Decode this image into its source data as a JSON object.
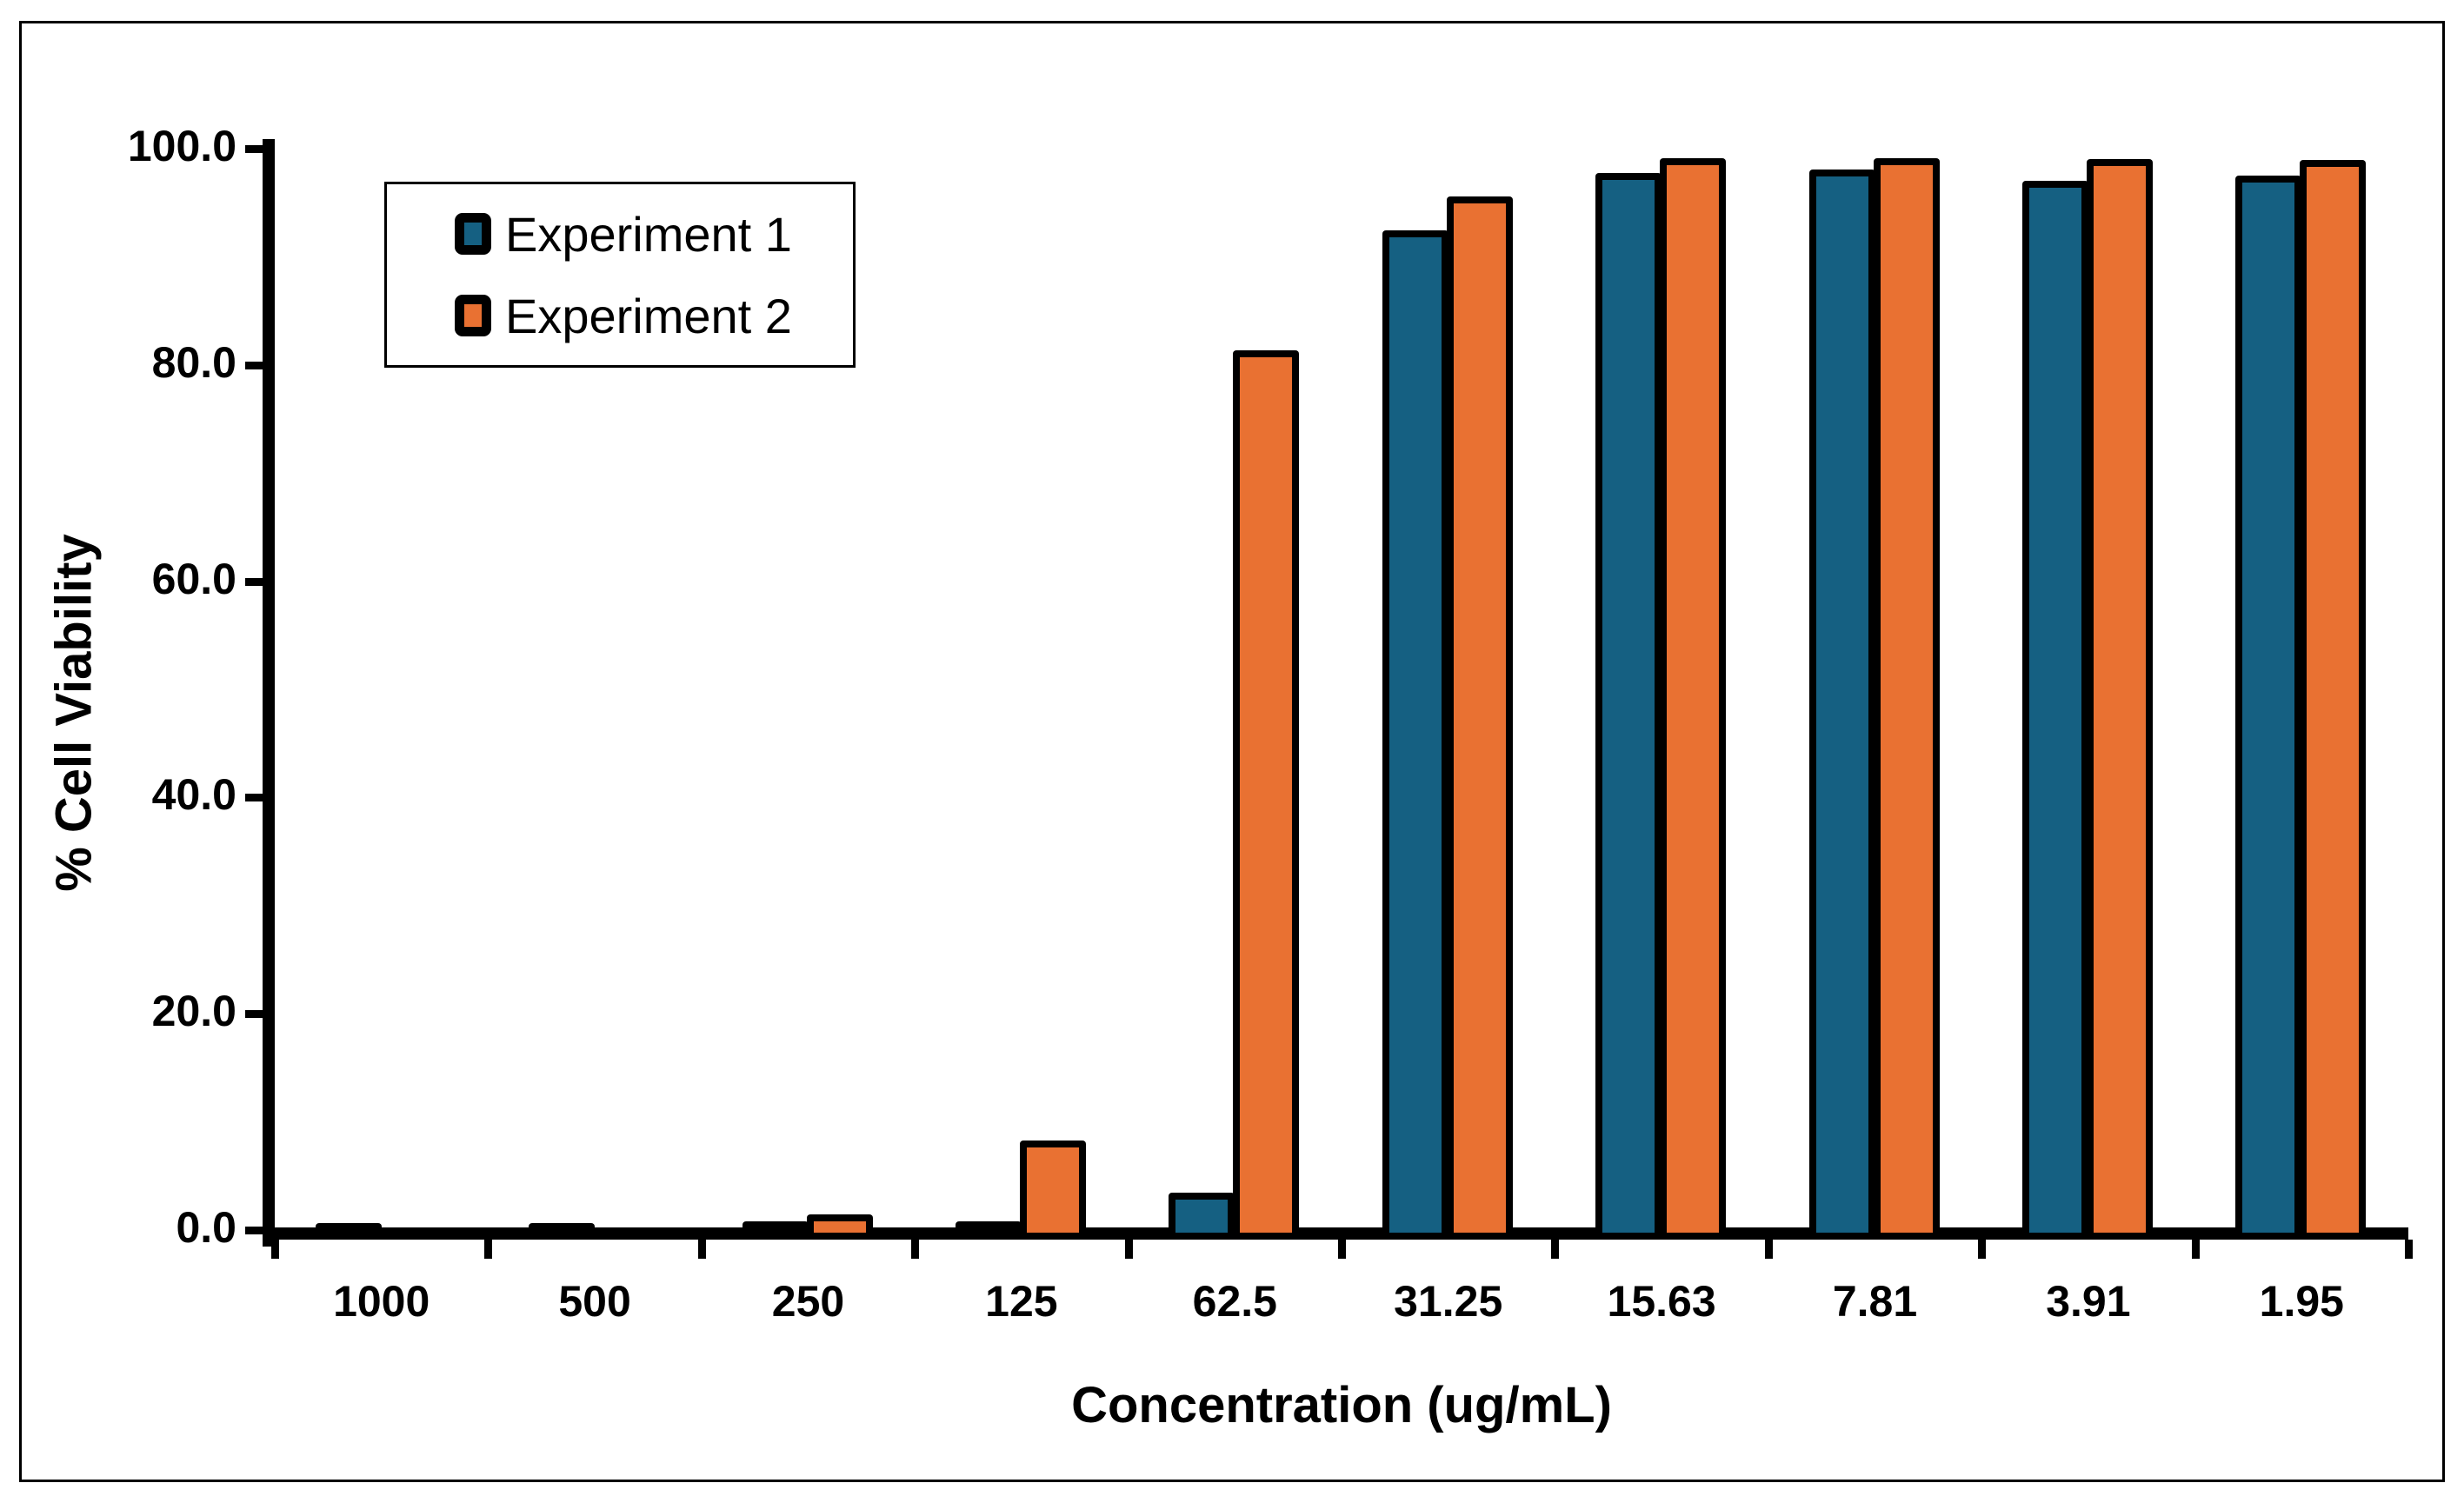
{
  "figure": {
    "y_axis_title": "% Cell Viability",
    "x_axis_title": "Concentration (ug/mL)"
  },
  "legend": {
    "items": [
      {
        "label": "Experiment 1",
        "color": "#156082"
      },
      {
        "label": "Experiment 2",
        "color": "#E97132"
      }
    ]
  },
  "chart_data": {
    "type": "bar",
    "title": "",
    "xlabel": "Concentration (ug/mL)",
    "ylabel": "% Cell Viability",
    "categories": [
      "1000",
      "500",
      "250",
      "125",
      "62.5",
      "31.25",
      "15.63",
      "7.81",
      "3.91",
      "1.95"
    ],
    "series": [
      {
        "name": "Experiment 1",
        "color": "#156082",
        "values": [
          0.4,
          0.4,
          0.6,
          0.6,
          3.2,
          92.2,
          97.5,
          97.8,
          96.8,
          97.3
        ]
      },
      {
        "name": "Experiment 2",
        "color": "#E97132",
        "values": [
          0.0,
          0.0,
          1.2,
          8.0,
          81.1,
          95.3,
          98.9,
          98.9,
          98.8,
          98.7
        ]
      }
    ],
    "ylim": [
      0,
      100
    ],
    "y_ticks": [
      0,
      20,
      40,
      60,
      80,
      100
    ],
    "y_tick_labels": [
      "0.0",
      "20.0",
      "40.0",
      "60.0",
      "80.0",
      "100.0"
    ],
    "grid": false,
    "legend_position": "top-left-inside",
    "bar_outline_color": "#000000",
    "background_color": "#FFFFFF"
  }
}
